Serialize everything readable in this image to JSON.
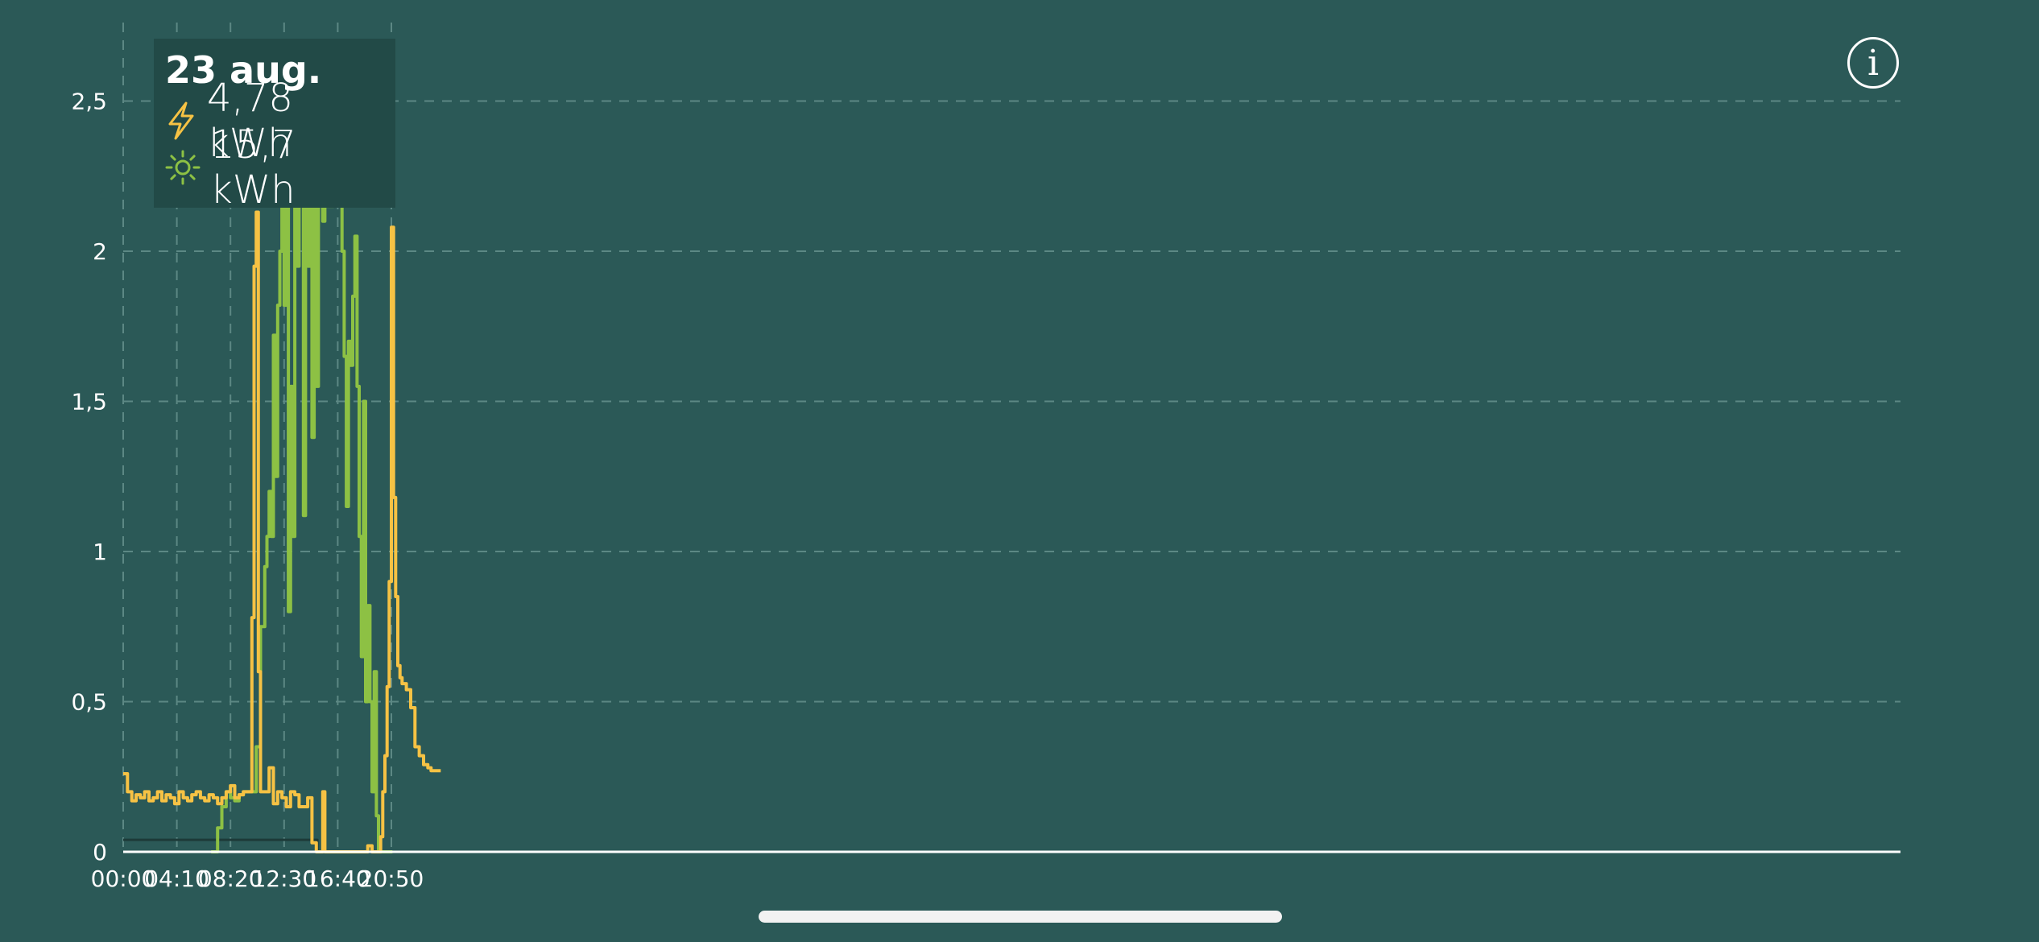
{
  "legend": {
    "date": "23 aug.",
    "consumption": "4,78 kWh",
    "production": "15,7 kWh",
    "consumption_icon": "lightning-icon",
    "production_icon": "sun-icon"
  },
  "info_icon": "info-icon",
  "colors": {
    "background": "#2b5957",
    "consumption": "#f6c244",
    "production": "#8dc144",
    "grid": "#5c8884"
  },
  "chart_data": {
    "type": "line",
    "xlabel": "",
    "ylabel": "",
    "ylim": [
      0,
      2.7
    ],
    "x_ticks": [
      "00:00",
      "04:10",
      "08:20",
      "12:30",
      "16:40",
      "20:50"
    ],
    "y_ticks": [
      "0",
      "0,5",
      "1",
      "1,5",
      "2",
      "2,5"
    ],
    "y_tick_values": [
      0,
      0.5,
      1,
      1.5,
      2,
      2.5
    ],
    "grid": true,
    "legend_position": "top-left",
    "series": [
      {
        "key": "consumption",
        "x": [
          "00:00",
          "00:20",
          "00:40",
          "01:00",
          "01:20",
          "01:40",
          "02:00",
          "02:20",
          "02:40",
          "03:00",
          "03:20",
          "03:40",
          "04:00",
          "04:20",
          "04:40",
          "05:00",
          "05:20",
          "05:40",
          "06:00",
          "06:20",
          "06:40",
          "07:00",
          "07:20",
          "07:40",
          "08:00",
          "08:20",
          "08:40",
          "09:00",
          "09:20",
          "09:40",
          "10:00",
          "10:10",
          "10:20",
          "10:30",
          "10:40",
          "10:50",
          "11:00",
          "11:20",
          "11:40",
          "12:00",
          "12:20",
          "12:40",
          "13:00",
          "13:20",
          "13:40",
          "14:00",
          "14:20",
          "14:40",
          "15:00",
          "15:20",
          "15:30",
          "15:40",
          "15:50",
          "16:00",
          "16:40",
          "17:20",
          "18:00",
          "18:40",
          "19:00",
          "19:20",
          "19:40",
          "20:00",
          "20:10",
          "20:20",
          "20:30",
          "20:40",
          "20:50",
          "21:00",
          "21:10",
          "21:20",
          "21:30",
          "21:40",
          "22:00",
          "22:20",
          "22:40",
          "23:00",
          "23:20",
          "23:40",
          "23:55"
        ],
        "y": [
          0.26,
          0.2,
          0.17,
          0.19,
          0.18,
          0.2,
          0.17,
          0.18,
          0.2,
          0.17,
          0.19,
          0.18,
          0.16,
          0.2,
          0.18,
          0.17,
          0.19,
          0.2,
          0.18,
          0.17,
          0.19,
          0.18,
          0.16,
          0.18,
          0.2,
          0.22,
          0.18,
          0.19,
          0.2,
          0.2,
          0.78,
          1.95,
          2.13,
          0.6,
          0.2,
          0.2,
          0.2,
          0.28,
          0.16,
          0.2,
          0.18,
          0.15,
          0.2,
          0.19,
          0.15,
          0.15,
          0.18,
          0.03,
          0.0,
          0.0,
          0.2,
          0.0,
          0.0,
          0.0,
          0.0,
          0.0,
          0.0,
          0.0,
          0.02,
          0.0,
          0.0,
          0.05,
          0.2,
          0.32,
          0.55,
          0.9,
          2.08,
          1.18,
          0.85,
          0.62,
          0.58,
          0.56,
          0.54,
          0.48,
          0.35,
          0.32,
          0.29,
          0.28,
          0.27
        ],
        "name": ""
      },
      {
        "key": "production",
        "x": [
          "06:50",
          "07:20",
          "07:40",
          "08:00",
          "08:20",
          "08:40",
          "09:00",
          "09:20",
          "09:40",
          "10:00",
          "10:20",
          "10:40",
          "11:00",
          "11:10",
          "11:20",
          "11:30",
          "11:40",
          "11:50",
          "12:00",
          "12:10",
          "12:20",
          "12:30",
          "12:40",
          "12:50",
          "13:00",
          "13:10",
          "13:20",
          "13:30",
          "13:40",
          "13:50",
          "14:00",
          "14:10",
          "14:20",
          "14:30",
          "14:40",
          "14:50",
          "15:00",
          "15:10",
          "15:20",
          "15:30",
          "15:40",
          "16:00",
          "16:20",
          "16:40",
          "17:00",
          "17:10",
          "17:20",
          "17:30",
          "17:40",
          "17:50",
          "18:00",
          "18:10",
          "18:20",
          "18:30",
          "18:40",
          "18:50",
          "19:00",
          "19:10",
          "19:20",
          "19:30",
          "19:40",
          "19:50",
          "20:00",
          "20:10"
        ],
        "y": [
          0.0,
          0.08,
          0.15,
          0.2,
          0.18,
          0.17,
          0.19,
          0.2,
          0.2,
          0.2,
          0.35,
          0.75,
          0.95,
          1.05,
          1.2,
          1.05,
          1.72,
          1.25,
          1.82,
          2.0,
          2.35,
          1.82,
          2.3,
          0.8,
          1.55,
          1.05,
          2.4,
          1.95,
          2.4,
          2.3,
          1.12,
          2.2,
          1.95,
          2.2,
          1.38,
          2.22,
          1.55,
          2.2,
          2.15,
          2.1,
          2.15,
          2.15,
          2.17,
          2.28,
          2.0,
          1.65,
          1.15,
          1.7,
          1.62,
          1.85,
          2.05,
          1.55,
          1.05,
          0.65,
          1.5,
          0.5,
          0.82,
          0.5,
          0.2,
          0.6,
          0.12,
          0.0,
          0.0,
          0.0
        ],
        "name": ""
      },
      {
        "key": "baseline",
        "x": [
          "00:00",
          "14:55",
          "15:05",
          "23:55"
        ],
        "y": [
          0.04,
          0.04,
          0.0,
          0.0
        ],
        "name": ""
      }
    ]
  }
}
